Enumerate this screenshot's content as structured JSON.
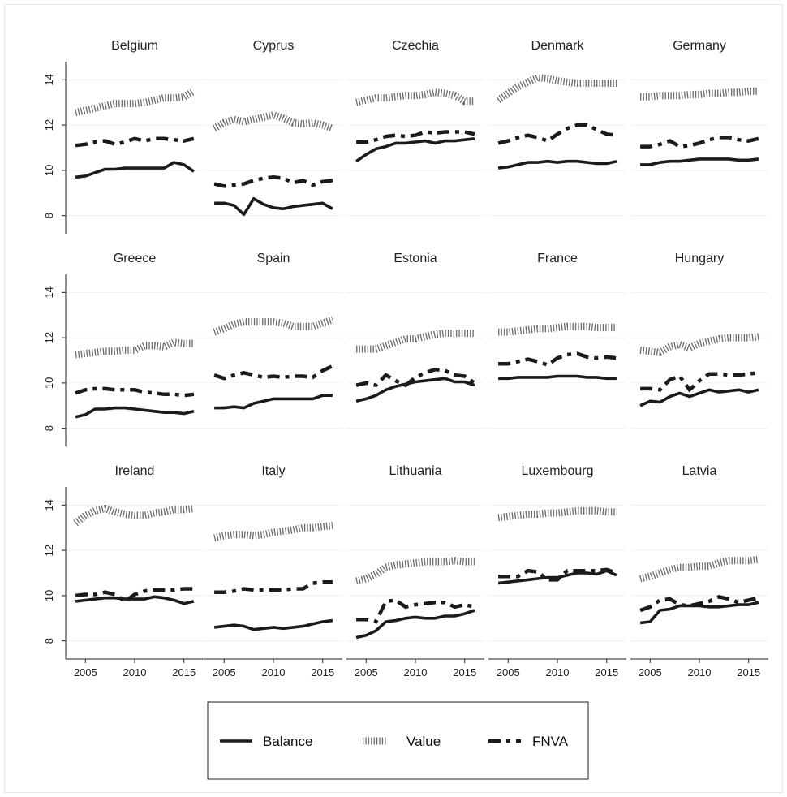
{
  "chart_data": {
    "type": "line",
    "layout": "small multiples",
    "x_ticks": [
      2005,
      2010,
      2015
    ],
    "y_ticks": [
      8,
      10,
      12,
      14
    ],
    "xlim": [
      2003,
      2017
    ],
    "ylim": [
      7.2,
      14.8
    ],
    "grid": true,
    "legend": {
      "position": "bottom",
      "entries": [
        {
          "key": "balance",
          "label": "Balance"
        },
        {
          "key": "value",
          "label": "Value"
        },
        {
          "key": "fnva",
          "label": "FNVA"
        }
      ]
    },
    "x": [
      2004,
      2005,
      2006,
      2007,
      2008,
      2009,
      2010,
      2011,
      2012,
      2013,
      2014,
      2015,
      2016
    ],
    "panels": [
      {
        "title": "Belgium",
        "balance": [
          9.7,
          9.75,
          9.9,
          10.05,
          10.05,
          10.1,
          10.1,
          10.1,
          10.1,
          10.1,
          10.35,
          10.25,
          9.95
        ],
        "value": [
          12.55,
          12.65,
          12.75,
          12.85,
          12.95,
          12.95,
          12.95,
          13.0,
          13.1,
          13.2,
          13.2,
          13.25,
          13.5
        ],
        "fnva": [
          11.1,
          11.15,
          11.25,
          11.3,
          11.15,
          11.25,
          11.4,
          11.3,
          11.4,
          11.4,
          11.35,
          11.3,
          11.4
        ]
      },
      {
        "title": "Cyprus",
        "balance": [
          8.55,
          8.55,
          8.45,
          8.05,
          8.75,
          8.5,
          8.35,
          8.3,
          8.4,
          8.45,
          8.5,
          8.55,
          8.3
        ],
        "value": [
          11.85,
          12.1,
          12.25,
          12.15,
          12.25,
          12.35,
          12.45,
          12.3,
          12.1,
          12.05,
          12.1,
          12.0,
          11.85
        ],
        "fnva": [
          9.4,
          9.3,
          9.35,
          9.4,
          9.55,
          9.65,
          9.7,
          9.65,
          9.45,
          9.55,
          9.35,
          9.5,
          9.55
        ]
      },
      {
        "title": "Czechia",
        "balance": [
          10.4,
          10.7,
          10.95,
          11.05,
          11.2,
          11.2,
          11.25,
          11.3,
          11.2,
          11.3,
          11.3,
          11.35,
          11.4
        ],
        "value": [
          13.0,
          13.1,
          13.2,
          13.2,
          13.25,
          13.3,
          13.3,
          13.35,
          13.45,
          13.4,
          13.3,
          13.05,
          13.05
        ],
        "fnva": [
          11.25,
          11.25,
          11.35,
          11.5,
          11.55,
          11.5,
          11.55,
          11.7,
          11.65,
          11.7,
          11.7,
          11.7,
          11.6
        ]
      },
      {
        "title": "Denmark",
        "balance": [
          10.1,
          10.15,
          10.25,
          10.35,
          10.35,
          10.4,
          10.35,
          10.4,
          10.4,
          10.35,
          10.3,
          10.3,
          10.4
        ],
        "value": [
          13.1,
          13.4,
          13.7,
          13.9,
          14.1,
          14.05,
          13.95,
          13.9,
          13.85,
          13.85,
          13.85,
          13.85,
          13.85
        ],
        "fnva": [
          11.2,
          11.3,
          11.45,
          11.55,
          11.45,
          11.3,
          11.6,
          11.85,
          12.0,
          12.0,
          11.8,
          11.6,
          11.55
        ]
      },
      {
        "title": "Germany",
        "balance": [
          10.25,
          10.25,
          10.35,
          10.4,
          10.4,
          10.45,
          10.5,
          10.5,
          10.5,
          10.5,
          10.45,
          10.45,
          10.5
        ],
        "value": [
          13.25,
          13.25,
          13.3,
          13.3,
          13.3,
          13.35,
          13.35,
          13.4,
          13.4,
          13.45,
          13.45,
          13.5,
          13.5
        ],
        "fnva": [
          11.05,
          11.05,
          11.15,
          11.3,
          11.05,
          11.1,
          11.2,
          11.35,
          11.45,
          11.45,
          11.35,
          11.3,
          11.4
        ]
      },
      {
        "title": "Greece",
        "balance": [
          8.5,
          8.6,
          8.85,
          8.85,
          8.9,
          8.9,
          8.85,
          8.8,
          8.75,
          8.7,
          8.7,
          8.65,
          8.75
        ],
        "value": [
          11.25,
          11.3,
          11.35,
          11.4,
          11.4,
          11.45,
          11.45,
          11.65,
          11.65,
          11.6,
          11.8,
          11.75,
          11.75
        ],
        "fnva": [
          9.55,
          9.7,
          9.75,
          9.75,
          9.7,
          9.7,
          9.7,
          9.6,
          9.55,
          9.5,
          9.5,
          9.45,
          9.5
        ]
      },
      {
        "title": "Spain",
        "balance": [
          8.9,
          8.9,
          8.95,
          8.9,
          9.1,
          9.2,
          9.3,
          9.3,
          9.3,
          9.3,
          9.3,
          9.45,
          9.45
        ],
        "value": [
          12.25,
          12.4,
          12.6,
          12.7,
          12.7,
          12.7,
          12.7,
          12.65,
          12.5,
          12.5,
          12.5,
          12.65,
          12.8
        ],
        "fnva": [
          10.35,
          10.2,
          10.35,
          10.45,
          10.35,
          10.25,
          10.3,
          10.25,
          10.3,
          10.3,
          10.25,
          10.55,
          10.75
        ]
      },
      {
        "title": "Estonia",
        "balance": [
          9.2,
          9.3,
          9.45,
          9.7,
          9.85,
          9.95,
          10.05,
          10.1,
          10.15,
          10.2,
          10.05,
          10.05,
          9.9
        ],
        "value": [
          11.5,
          11.5,
          11.5,
          11.65,
          11.8,
          11.95,
          11.95,
          12.05,
          12.15,
          12.2,
          12.2,
          12.2,
          12.2
        ],
        "fnva": [
          9.9,
          10.0,
          9.9,
          10.35,
          10.1,
          9.9,
          10.25,
          10.45,
          10.6,
          10.55,
          10.35,
          10.3,
          10.0
        ]
      },
      {
        "title": "France",
        "balance": [
          10.2,
          10.2,
          10.25,
          10.25,
          10.25,
          10.25,
          10.3,
          10.3,
          10.3,
          10.25,
          10.25,
          10.2,
          10.2
        ],
        "value": [
          12.25,
          12.25,
          12.3,
          12.35,
          12.4,
          12.4,
          12.45,
          12.5,
          12.5,
          12.5,
          12.45,
          12.45,
          12.45
        ],
        "fnva": [
          10.85,
          10.85,
          10.95,
          11.05,
          10.95,
          10.8,
          11.1,
          11.25,
          11.3,
          11.15,
          11.1,
          11.15,
          11.1
        ]
      },
      {
        "title": "Hungary",
        "balance": [
          9.0,
          9.2,
          9.15,
          9.4,
          9.55,
          9.4,
          9.55,
          9.7,
          9.6,
          9.65,
          9.7,
          9.6,
          9.7
        ],
        "value": [
          11.45,
          11.4,
          11.35,
          11.6,
          11.7,
          11.55,
          11.75,
          11.85,
          11.95,
          12.0,
          12.0,
          12.0,
          12.05
        ],
        "fnva": [
          9.75,
          9.75,
          9.7,
          10.15,
          10.3,
          9.7,
          10.1,
          10.4,
          10.4,
          10.35,
          10.35,
          10.4,
          10.45
        ]
      },
      {
        "title": "Ireland",
        "balance": [
          9.75,
          9.8,
          9.85,
          9.9,
          9.9,
          9.85,
          9.85,
          9.85,
          9.95,
          9.9,
          9.8,
          9.65,
          9.75
        ],
        "value": [
          13.2,
          13.55,
          13.75,
          13.85,
          13.7,
          13.6,
          13.55,
          13.55,
          13.65,
          13.7,
          13.8,
          13.8,
          13.85
        ],
        "fnva": [
          10.0,
          10.05,
          10.05,
          10.15,
          10.05,
          9.75,
          10.05,
          10.2,
          10.25,
          10.25,
          10.25,
          10.3,
          10.3
        ]
      },
      {
        "title": "Italy",
        "balance": [
          8.6,
          8.65,
          8.7,
          8.65,
          8.5,
          8.55,
          8.6,
          8.55,
          8.6,
          8.65,
          8.75,
          8.85,
          8.9
        ],
        "value": [
          12.55,
          12.65,
          12.7,
          12.7,
          12.65,
          12.7,
          12.8,
          12.85,
          12.9,
          13.0,
          13.0,
          13.05,
          13.1
        ],
        "fnva": [
          10.15,
          10.15,
          10.2,
          10.3,
          10.25,
          10.25,
          10.25,
          10.25,
          10.3,
          10.3,
          10.55,
          10.6,
          10.6
        ]
      },
      {
        "title": "Lithuania",
        "balance": [
          8.15,
          8.25,
          8.45,
          8.85,
          8.9,
          9.0,
          9.05,
          9.0,
          9.0,
          9.1,
          9.1,
          9.2,
          9.35
        ],
        "value": [
          10.65,
          10.75,
          10.95,
          11.25,
          11.35,
          11.4,
          11.45,
          11.5,
          11.5,
          11.5,
          11.55,
          11.5,
          11.5
        ],
        "fnva": [
          8.95,
          8.95,
          8.85,
          9.75,
          9.8,
          9.5,
          9.6,
          9.65,
          9.7,
          9.7,
          9.5,
          9.6,
          9.5
        ]
      },
      {
        "title": "Luxembourg",
        "balance": [
          10.55,
          10.6,
          10.65,
          10.7,
          10.75,
          10.8,
          10.8,
          10.9,
          11.0,
          11.0,
          10.95,
          11.1,
          10.9
        ],
        "value": [
          13.45,
          13.5,
          13.55,
          13.6,
          13.6,
          13.65,
          13.65,
          13.7,
          13.75,
          13.75,
          13.75,
          13.7,
          13.7
        ],
        "fnva": [
          10.85,
          10.85,
          10.85,
          11.1,
          11.05,
          10.7,
          10.7,
          11.1,
          11.1,
          11.1,
          11.1,
          11.15,
          11.0
        ]
      },
      {
        "title": "Latvia",
        "balance": [
          8.8,
          8.85,
          9.35,
          9.4,
          9.55,
          9.55,
          9.55,
          9.5,
          9.5,
          9.55,
          9.6,
          9.6,
          9.7
        ],
        "value": [
          10.75,
          10.85,
          11.0,
          11.15,
          11.25,
          11.25,
          11.3,
          11.3,
          11.45,
          11.55,
          11.55,
          11.55,
          11.6
        ],
        "fnva": [
          9.35,
          9.5,
          9.8,
          9.85,
          9.6,
          9.55,
          9.65,
          9.75,
          9.95,
          9.85,
          9.7,
          9.8,
          9.9
        ]
      }
    ]
  }
}
